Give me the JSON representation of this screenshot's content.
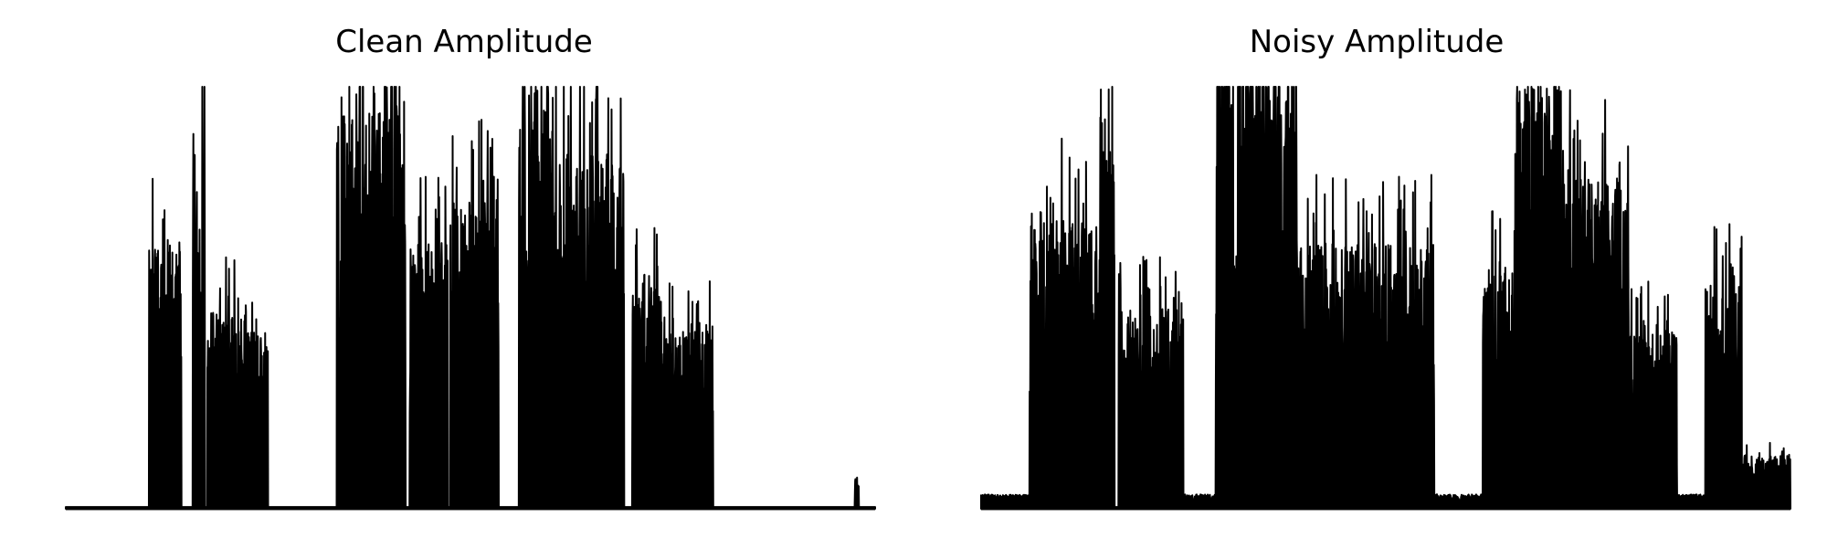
{
  "chart_data": [
    {
      "type": "area",
      "title": "Clean Amplitude",
      "xlabel": "",
      "ylabel": "",
      "axes_visible": false,
      "grid": false,
      "color": "#000000",
      "ylim": [
        0,
        1
      ],
      "segments": [
        {
          "x0": 0.0,
          "x1": 0.103,
          "level": 0.0
        },
        {
          "x0": 0.103,
          "x1": 0.143,
          "level": 0.6
        },
        {
          "x0": 0.157,
          "x1": 0.172,
          "level": 0.8
        },
        {
          "x0": 0.175,
          "x1": 0.223,
          "level": 0.45
        },
        {
          "x0": 0.225,
          "x1": 0.25,
          "level": 0.4
        },
        {
          "x0": 0.25,
          "x1": 0.335,
          "level": 0.0
        },
        {
          "x0": 0.335,
          "x1": 0.42,
          "level": 0.9
        },
        {
          "x0": 0.425,
          "x1": 0.472,
          "level": 0.6
        },
        {
          "x0": 0.475,
          "x1": 0.535,
          "level": 0.7
        },
        {
          "x0": 0.56,
          "x1": 0.6,
          "level": 1.0
        },
        {
          "x0": 0.6,
          "x1": 0.69,
          "level": 0.8
        },
        {
          "x0": 0.7,
          "x1": 0.735,
          "level": 0.55
        },
        {
          "x0": 0.735,
          "x1": 0.8,
          "level": 0.4
        },
        {
          "x0": 0.8,
          "x1": 0.975,
          "level": 0.0
        },
        {
          "x0": 0.975,
          "x1": 0.98,
          "level": 0.07
        },
        {
          "x0": 0.98,
          "x1": 1.0,
          "level": 0.0
        }
      ]
    },
    {
      "type": "area",
      "title": "Noisy Amplitude",
      "xlabel": "",
      "ylabel": "",
      "axes_visible": false,
      "grid": false,
      "color": "#000000",
      "ylim": [
        0,
        1
      ],
      "segments": [
        {
          "x0": 0.0,
          "x1": 0.06,
          "level": 0.03
        },
        {
          "x0": 0.06,
          "x1": 0.145,
          "level": 0.65
        },
        {
          "x0": 0.145,
          "x1": 0.165,
          "level": 0.8
        },
        {
          "x0": 0.17,
          "x1": 0.25,
          "level": 0.45
        },
        {
          "x0": 0.25,
          "x1": 0.29,
          "level": 0.03
        },
        {
          "x0": 0.29,
          "x1": 0.39,
          "level": 1.0
        },
        {
          "x0": 0.39,
          "x1": 0.56,
          "level": 0.6
        },
        {
          "x0": 0.56,
          "x1": 0.62,
          "level": 0.03
        },
        {
          "x0": 0.62,
          "x1": 0.66,
          "level": 0.55
        },
        {
          "x0": 0.66,
          "x1": 0.72,
          "level": 0.95
        },
        {
          "x0": 0.72,
          "x1": 0.8,
          "level": 0.75
        },
        {
          "x0": 0.8,
          "x1": 0.86,
          "level": 0.4
        },
        {
          "x0": 0.86,
          "x1": 0.895,
          "level": 0.03
        },
        {
          "x0": 0.895,
          "x1": 0.94,
          "level": 0.5
        },
        {
          "x0": 0.94,
          "x1": 1.0,
          "level": 0.12
        }
      ]
    }
  ]
}
